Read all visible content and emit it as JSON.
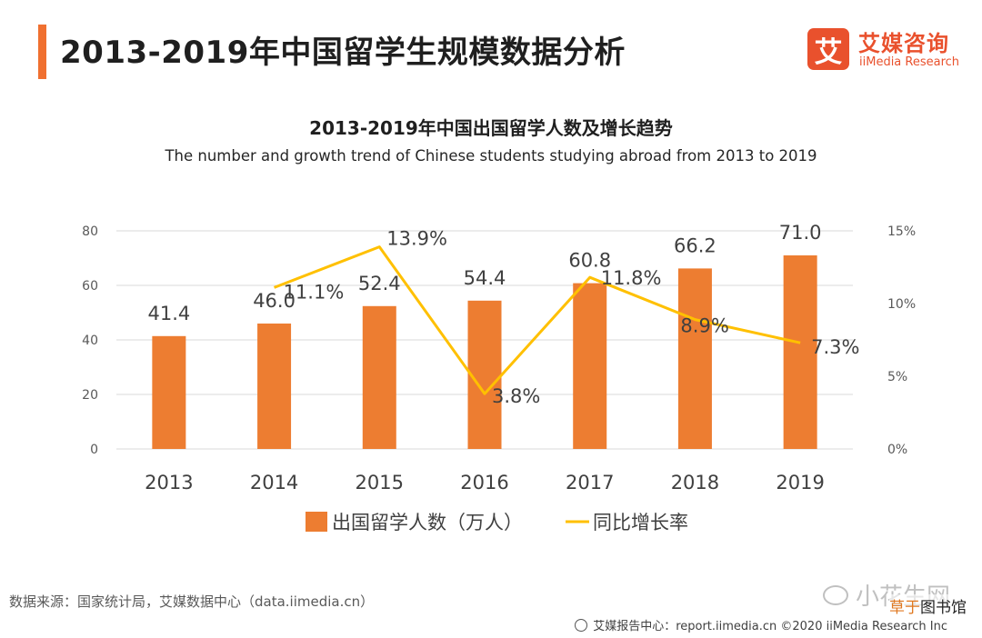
{
  "header": {
    "title": "2013-2019年中国留学生规模数据分析",
    "logo_mark": "艾",
    "logo_cn": "艾媒咨询",
    "logo_en": "iiMedia Research"
  },
  "chart_data": {
    "type": "bar",
    "title": "2013-2019年中国出国留学人数及增长趋势",
    "subtitle": "The number and growth trend of Chinese students studying abroad from 2013 to 2019",
    "categories": [
      "2013",
      "2014",
      "2015",
      "2016",
      "2017",
      "2018",
      "2019"
    ],
    "series": [
      {
        "name": "出国留学人数（万人）",
        "type": "bar",
        "axis": "left",
        "color": "#ed7d31",
        "values": [
          41.4,
          46.0,
          52.4,
          54.4,
          60.8,
          66.2,
          71.0
        ],
        "labels": [
          "41.4",
          "46.0",
          "52.4",
          "54.4",
          "60.8",
          "66.2",
          "71.0"
        ]
      },
      {
        "name": "同比增长率",
        "type": "line",
        "axis": "right",
        "color": "#ffc000",
        "x": [
          "2014",
          "2015",
          "2016",
          "2017",
          "2018",
          "2019"
        ],
        "values": [
          11.1,
          13.9,
          3.8,
          11.8,
          8.9,
          7.3
        ],
        "labels": [
          "11.1%",
          "13.9%",
          "3.8%",
          "11.8%",
          "8.9%",
          "7.3%"
        ]
      }
    ],
    "y_left": {
      "ylim": [
        0,
        80
      ],
      "ticks": [
        "0",
        "20",
        "40",
        "60",
        "80"
      ],
      "tick_values": [
        0,
        20,
        40,
        60,
        80
      ]
    },
    "y_right": {
      "ylim": [
        0,
        15
      ],
      "ticks": [
        "0%",
        "5%",
        "10%",
        "15%"
      ],
      "tick_values": [
        0,
        5,
        10,
        15
      ]
    },
    "grid": true,
    "legend": "bottom-center"
  },
  "footer": {
    "source": "数据来源：国家统计局，艾媒数据中心（data.iimedia.cn）",
    "report_center": "艾媒报告中心：report.iimedia.cn  ©2020  iiMedia Research  Inc",
    "watermark": "小花生网",
    "watermark2_a": "草于",
    "watermark2_b": "图书馆"
  }
}
